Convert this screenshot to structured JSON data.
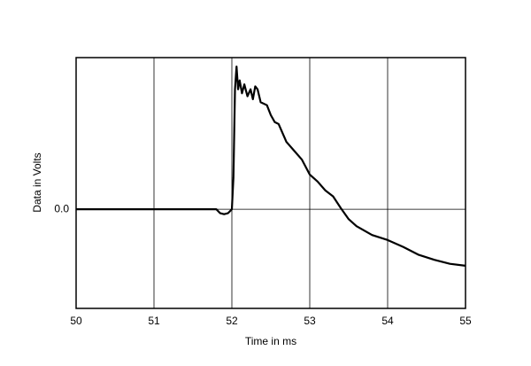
{
  "chart_data": {
    "type": "line",
    "xlabel": "Time in ms",
    "ylabel": "Data in Volts",
    "x": [
      50,
      51.8,
      51.85,
      51.9,
      51.95,
      52.0,
      52.02,
      52.04,
      52.06,
      52.08,
      52.1,
      52.13,
      52.16,
      52.2,
      52.24,
      52.27,
      52.3,
      52.33,
      52.37,
      52.45,
      52.5,
      52.55,
      52.6,
      52.7,
      52.8,
      52.9,
      53.0,
      53.1,
      53.2,
      53.3,
      53.4,
      53.5,
      53.6,
      53.8,
      54.0,
      54.2,
      54.4,
      54.6,
      54.8,
      55.0
    ],
    "series": [
      {
        "color": "#000000",
        "values": [
          0,
          0,
          -0.04,
          -0.05,
          -0.04,
          0,
          0.32,
          1.21,
          1.44,
          1.21,
          1.3,
          1.17,
          1.26,
          1.14,
          1.21,
          1.11,
          1.24,
          1.21,
          1.08,
          1.05,
          0.95,
          0.88,
          0.86,
          0.68,
          0.59,
          0.5,
          0.35,
          0.28,
          0.19,
          0.13,
          0.01,
          -0.1,
          -0.17,
          -0.26,
          -0.31,
          -0.38,
          -0.46,
          -0.51,
          -0.55,
          -0.57
        ]
      }
    ],
    "xlim": [
      50,
      55
    ],
    "xticks": [
      50,
      51,
      52,
      53,
      54,
      55
    ],
    "ylim": [
      -1,
      1.53
    ],
    "yticks": [
      {
        "value": 0,
        "label": "0.0"
      }
    ],
    "grid": true
  }
}
